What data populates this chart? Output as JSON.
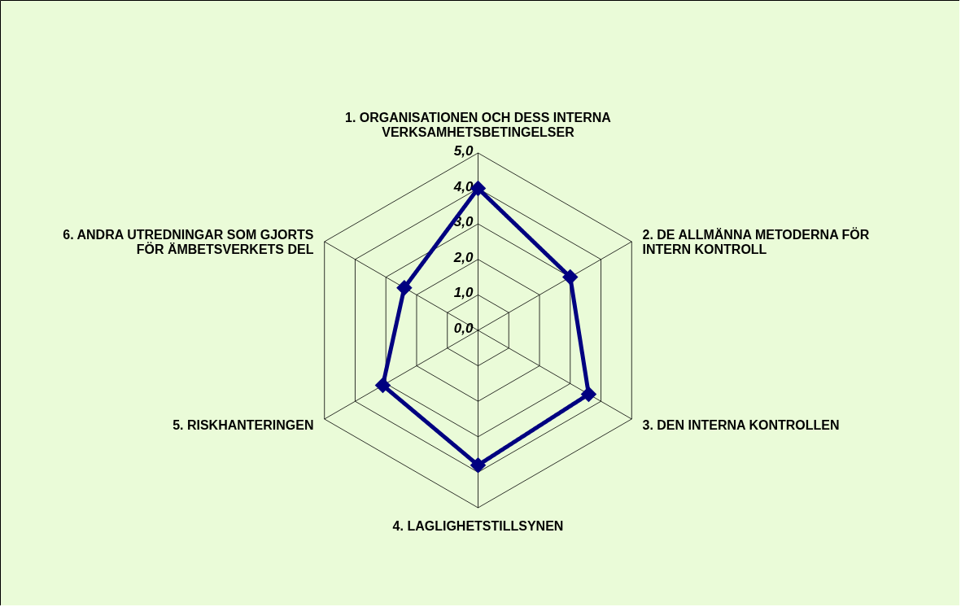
{
  "chart_data": {
    "type": "radar",
    "categories": [
      "1. ORGANISATIONEN OCH DESS INTERNA VERKSAMHETSBETINGELSER",
      "2. DE ALLMÄNNA METODERNA FÖR INTERN KONTROLL",
      "3. DEN INTERNA KONTROLLEN",
      "4. LAGLIGHETSTILLSYNEN",
      "5. RISKHANTERINGEN",
      "6. ANDRA UTREDNINGAR SOM GJORTS FÖR ÄMBETSVERKETS DEL"
    ],
    "series": [
      {
        "color": "#000080",
        "values": [
          4.0,
          3.0,
          3.6,
          3.8,
          3.1,
          2.4
        ]
      }
    ],
    "ylim": [
      0,
      5
    ],
    "yticks": [
      {
        "value": 0,
        "label": "0,0"
      },
      {
        "value": 1,
        "label": "1,0"
      },
      {
        "value": 2,
        "label": "2,0"
      },
      {
        "value": 3,
        "label": "3,0"
      },
      {
        "value": 4,
        "label": "4,0"
      },
      {
        "value": 5,
        "label": "5,0"
      }
    ],
    "grid": true,
    "marker": "diamond",
    "line_style": "solid"
  }
}
